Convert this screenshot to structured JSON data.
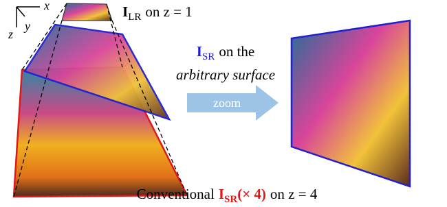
{
  "axes": {
    "x": "x",
    "y": "y",
    "z": "z"
  },
  "lr_label": {
    "symbol": "I",
    "subscript": "LR",
    "text": "on z = 1"
  },
  "sr_label": {
    "symbol": "I",
    "subscript": "SR",
    "text": "on the",
    "line2": "arbitrary surface"
  },
  "zoom": "zoom",
  "conventional": {
    "prefix": "Conventional",
    "symbol": "I",
    "subscript": "SR",
    "factor": "(× 4)",
    "suffix": "on z = 4"
  }
}
